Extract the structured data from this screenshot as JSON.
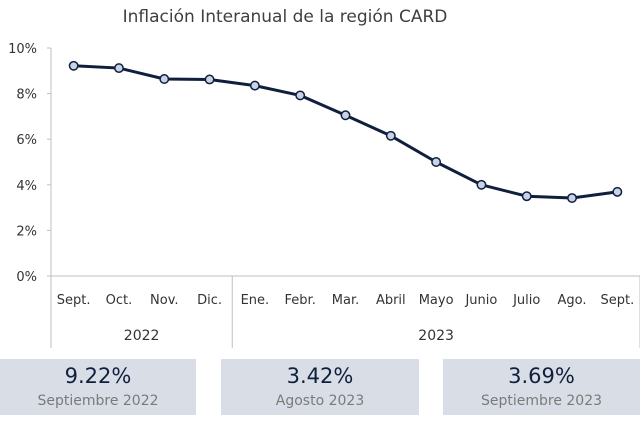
{
  "chart_data": {
    "type": "line",
    "title": "Inflación Interanual de la región CARD",
    "categories": [
      "Sept.",
      "Oct.",
      "Nov.",
      "Dic.",
      "Ene.",
      "Febr.",
      "Mar.",
      "Abril",
      "Mayo",
      "Junio",
      "Julio",
      "Ago.",
      "Sept."
    ],
    "year_groups": [
      {
        "label": "2022",
        "count": 4
      },
      {
        "label": "2023",
        "count": 9
      }
    ],
    "series": [
      {
        "values": [
          9.22,
          9.12,
          8.64,
          8.62,
          8.35,
          7.92,
          7.05,
          6.15,
          5.0,
          4.0,
          3.5,
          3.42,
          3.69
        ]
      }
    ],
    "ylim": [
      0,
      10
    ],
    "yticks": [
      0,
      2,
      4,
      6,
      8,
      10
    ],
    "ytick_labels": [
      "0%",
      "2%",
      "4%",
      "6%",
      "8%",
      "10%"
    ],
    "grid": false,
    "colors": {
      "line": "#0f1f3d",
      "marker_fill": "#c9d3e6"
    }
  },
  "summary": [
    {
      "value": "9.22%",
      "label": "Septiembre 2022"
    },
    {
      "value": "3.42%",
      "label": "Agosto 2023"
    },
    {
      "value": "3.69%",
      "label": "Septiembre 2023"
    }
  ]
}
